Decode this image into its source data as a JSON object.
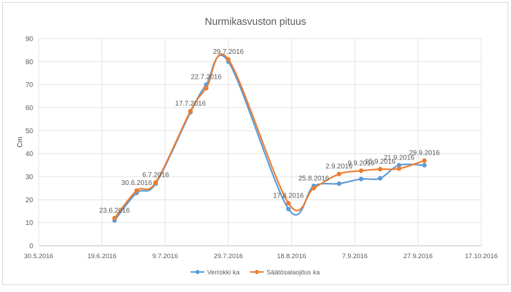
{
  "chart_data": {
    "type": "line",
    "title": "Nurmikasvuston pituus",
    "xlabel": "",
    "ylabel": "Cm",
    "ylim": [
      0,
      90
    ],
    "yticks": [
      0,
      10,
      20,
      30,
      40,
      50,
      60,
      70,
      80,
      90
    ],
    "xlim": [
      "2016-05-30",
      "2016-10-17"
    ],
    "xtick_labels": [
      "30.5.2016",
      "19.6.2016",
      "9.7.2016",
      "29.7.2016",
      "18.8.2016",
      "7.9.2016",
      "27.9.2016",
      "17.10.2016"
    ],
    "grid": true,
    "smooth": true,
    "legend_position": "bottom",
    "x": [
      "2016-06-23",
      "2016-06-30",
      "2016-07-06",
      "2016-07-17",
      "2016-07-22",
      "2016-07-29",
      "2016-08-17",
      "2016-08-25",
      "2016-09-02",
      "2016-09-09",
      "2016-09-15",
      "2016-09-21",
      "2016-09-29"
    ],
    "point_labels": [
      "23.6.2016",
      "30.6.2016",
      "6.7.2016",
      "17.7.2016",
      "22.7.2016",
      "29.7.2016",
      "17.8.2016",
      "25.8.2016",
      "2.9.2016",
      "9.9.2016",
      "15.9.2016",
      "21.9.2016",
      "29.9.2016"
    ],
    "series": [
      {
        "name": "Verrokki ka",
        "color": "#5b9bd5",
        "values": [
          11,
          23,
          27,
          58,
          70,
          80,
          16,
          26,
          27,
          29,
          29.3,
          35,
          35
        ]
      },
      {
        "name": "Säätösalaojitus ka",
        "color": "#ed7d31",
        "values": [
          12,
          24,
          27.5,
          58.5,
          68.5,
          81,
          18.5,
          25,
          31.2,
          32.6,
          33.3,
          33.5,
          37
        ]
      }
    ]
  }
}
